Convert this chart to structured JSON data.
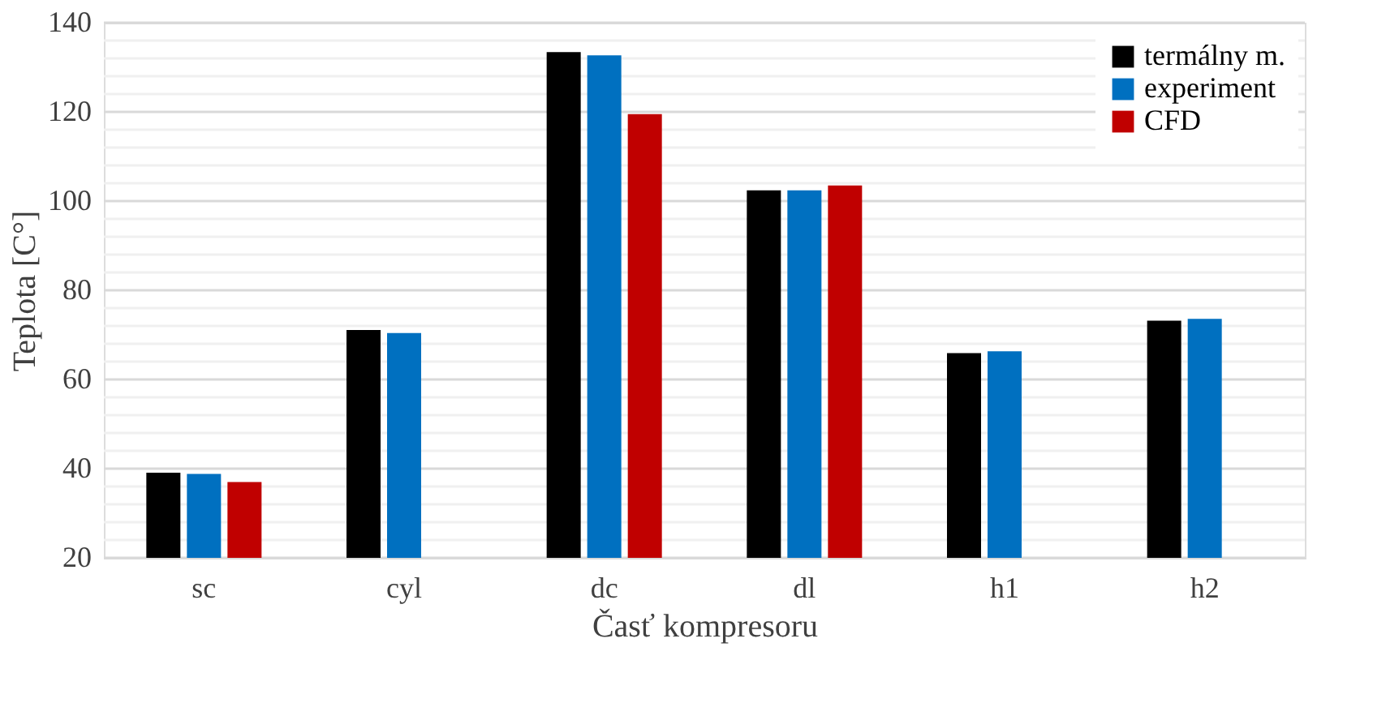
{
  "chart_data": {
    "type": "bar",
    "xlabel": "Časť kompresoru",
    "ylabel": "Teplota [C°]",
    "categories": [
      "sc",
      "cyl",
      "dc",
      "dl",
      "h1",
      "h2"
    ],
    "series": [
      {
        "name": "termálny m.",
        "color": "#000000",
        "values": [
          39.1,
          71.1,
          133.4,
          102.4,
          65.9,
          73.2
        ]
      },
      {
        "name": "experiment",
        "color": "#0070c0",
        "values": [
          38.8,
          70.4,
          132.7,
          102.4,
          66.3,
          73.6
        ]
      },
      {
        "name": "CFD",
        "color": "#c00000",
        "values": [
          37.0,
          null,
          119.5,
          103.5,
          null,
          null
        ]
      }
    ],
    "ylim": [
      20,
      140
    ],
    "yticks": [
      20,
      {
        "value": 24,
        "label": null
      },
      {
        "value": 28,
        "label": null
      },
      {
        "value": 32,
        "label": null
      },
      {
        "value": 36,
        "label": null
      },
      40,
      {
        "value": 44,
        "label": null
      },
      {
        "value": 48,
        "label": null
      },
      {
        "value": 52,
        "label": null
      },
      {
        "value": 56,
        "label": null
      },
      60,
      {
        "value": 64,
        "label": null
      },
      {
        "value": 68,
        "label": null
      },
      {
        "value": 72,
        "label": null
      },
      {
        "value": 76,
        "label": null
      },
      80,
      {
        "value": 84,
        "label": null
      },
      {
        "value": 88,
        "label": null
      },
      {
        "value": 92,
        "label": null
      },
      {
        "value": 96,
        "label": null
      },
      100,
      {
        "value": 104,
        "label": null
      },
      {
        "value": 108,
        "label": null
      },
      {
        "value": 112,
        "label": null
      },
      {
        "value": 116,
        "label": null
      },
      120,
      {
        "value": 124,
        "label": null
      },
      {
        "value": 128,
        "label": null
      },
      {
        "value": 132,
        "label": null
      },
      {
        "value": 136,
        "label": null
      },
      140
    ],
    "grid": "y",
    "legend": "top right"
  }
}
